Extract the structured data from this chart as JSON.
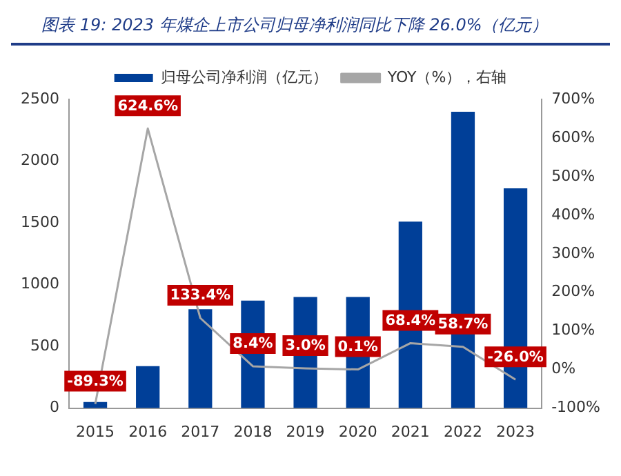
{
  "chart_data": {
    "type": "bar",
    "title": "图表 19:  2023 年煤企上市公司归母净利润同比下降 26.0%（亿元）",
    "categories": [
      "2015",
      "2016",
      "2017",
      "2018",
      "2019",
      "2020",
      "2021",
      "2022",
      "2023"
    ],
    "series": [
      {
        "name": "归母公司净利润（亿元）",
        "color": "#003f98",
        "values": [
          50,
          340,
          800,
          870,
          900,
          900,
          1510,
          2400,
          1780
        ]
      },
      {
        "name": "YOY（%），右轴",
        "type": "line",
        "axis": "y2",
        "color": "#a6a6a6",
        "marker": "none",
        "values": [
          -89.3,
          624.6,
          133.4,
          8.4,
          3.0,
          0.1,
          68.4,
          58.7,
          -26.0
        ],
        "value_labels": [
          "-89.3%",
          "624.6%",
          "133.4%",
          "8.4%",
          "3.0%",
          "0.1%",
          "68.4%",
          "58.7%",
          "-26.0%"
        ]
      }
    ],
    "ylim": [
      0,
      2500
    ],
    "yticks": [
      0,
      500,
      1000,
      1500,
      2000,
      2500
    ],
    "y2lim": [
      -100,
      700
    ],
    "y2ticks": [
      {
        "value": -100,
        "label": "-100%"
      },
      {
        "value": 0,
        "label": "0%"
      },
      {
        "value": 100,
        "label": "100%"
      },
      {
        "value": 200,
        "label": "200%"
      },
      {
        "value": 300,
        "label": "300%"
      },
      {
        "value": 400,
        "label": "400%"
      },
      {
        "value": 500,
        "label": "500%"
      },
      {
        "value": 600,
        "label": "600%"
      },
      {
        "value": 700,
        "label": "700%"
      }
    ],
    "legend": "top",
    "grid": false
  }
}
